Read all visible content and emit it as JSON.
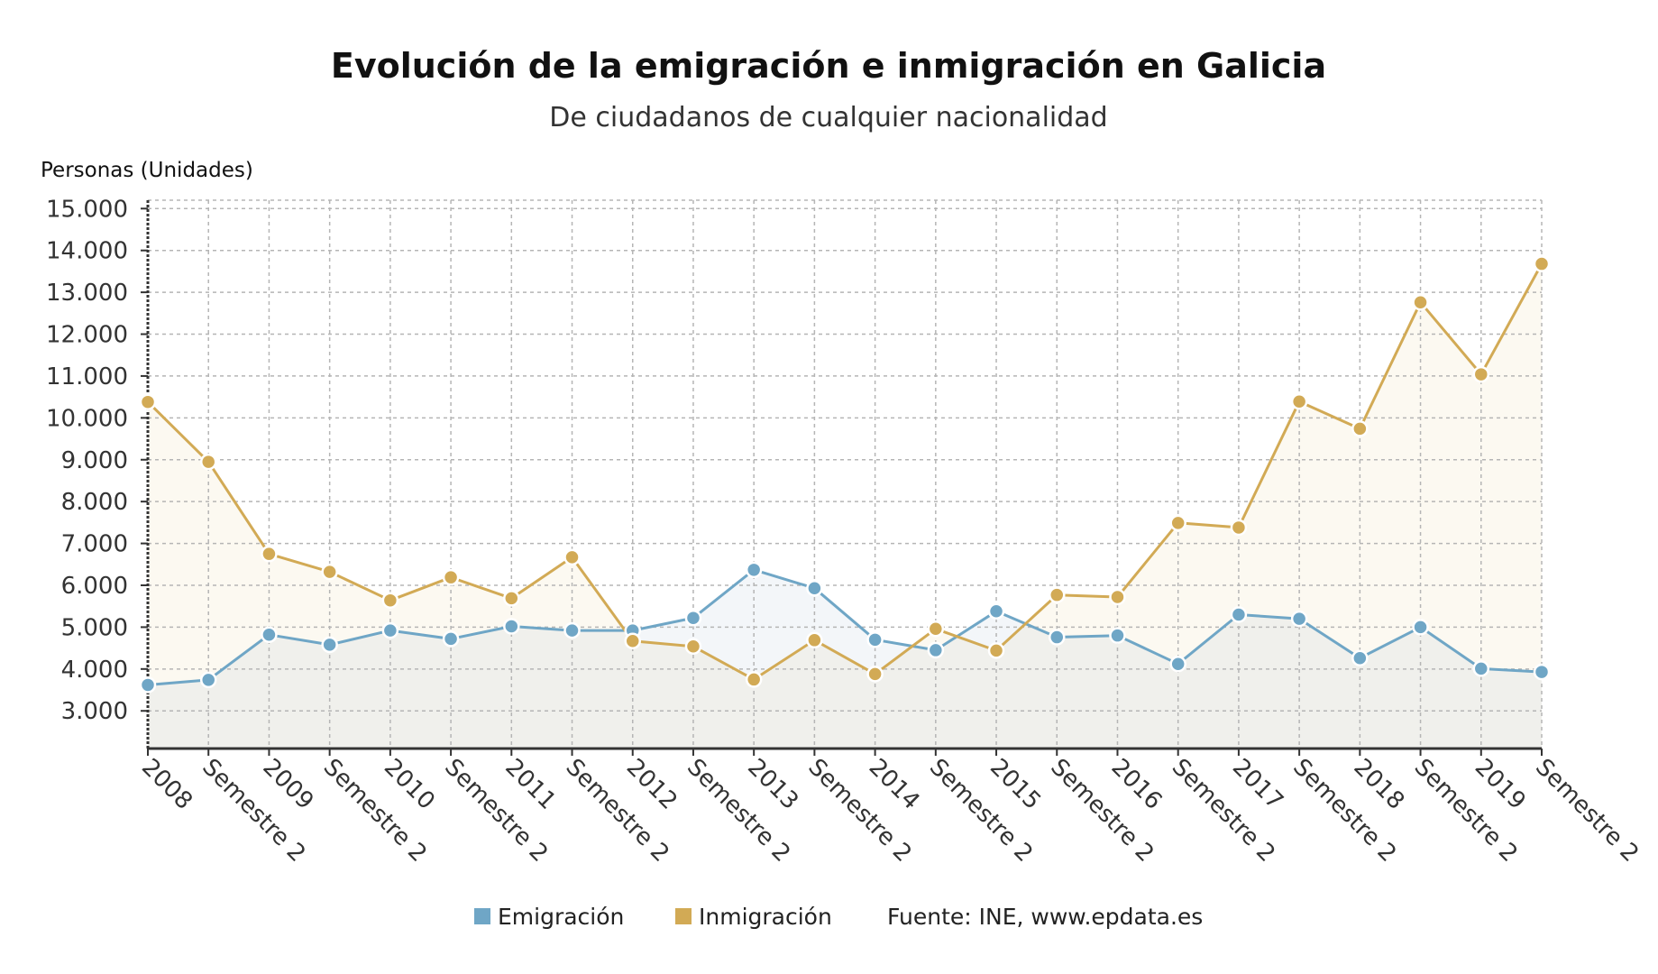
{
  "chart_data": {
    "type": "line",
    "title": "Evolución de la emigración e inmigración en Galicia",
    "subtitle": "De ciudadanos de cualquier nacionalidad",
    "ylabel": "Personas (Unidades)",
    "ylim": [
      2100,
      15200
    ],
    "yticks": [
      3000,
      4000,
      5000,
      6000,
      7000,
      8000,
      9000,
      10000,
      11000,
      12000,
      13000,
      14000,
      15000
    ],
    "ytick_labels": [
      "3.000",
      "4.000",
      "5.000",
      "6.000",
      "7.000",
      "8.000",
      "9.000",
      "10.000",
      "11.000",
      "12.000",
      "13.000",
      "14.000",
      "15.000"
    ],
    "categories": [
      "2008",
      "Semestre 2",
      "2009",
      "Semestre 2",
      "2010",
      "Semestre 2",
      "2011",
      "Semestre 2",
      "2012",
      "Semestre 2",
      "2013",
      "Semestre 2",
      "2014",
      "Semestre 2",
      "2015",
      "Semestre 2",
      "2016",
      "Semestre 2",
      "2017",
      "Semestre 2",
      "2018",
      "Semestre 2",
      "2019",
      "Semestre 2"
    ],
    "series": [
      {
        "name": "Emigración",
        "color": "#6fa6c6",
        "values": [
          3620,
          3740,
          4820,
          4580,
          4920,
          4720,
          5020,
          4920,
          4920,
          5220,
          6370,
          5930,
          4700,
          4450,
          5380,
          4760,
          4800,
          4120,
          5300,
          5200,
          4260,
          5000,
          4010,
          3930
        ]
      },
      {
        "name": "Inmigración",
        "color": "#d2aa55",
        "values": [
          10380,
          8950,
          6750,
          6320,
          5640,
          6190,
          5690,
          6670,
          4670,
          4540,
          3750,
          4690,
          3880,
          4960,
          4440,
          5770,
          5720,
          7490,
          7380,
          10390,
          9740,
          12760,
          11040,
          13680
        ]
      }
    ],
    "grid": true,
    "legend_placement": "bottom",
    "source": "Fuente: INE, www.epdata.es"
  }
}
